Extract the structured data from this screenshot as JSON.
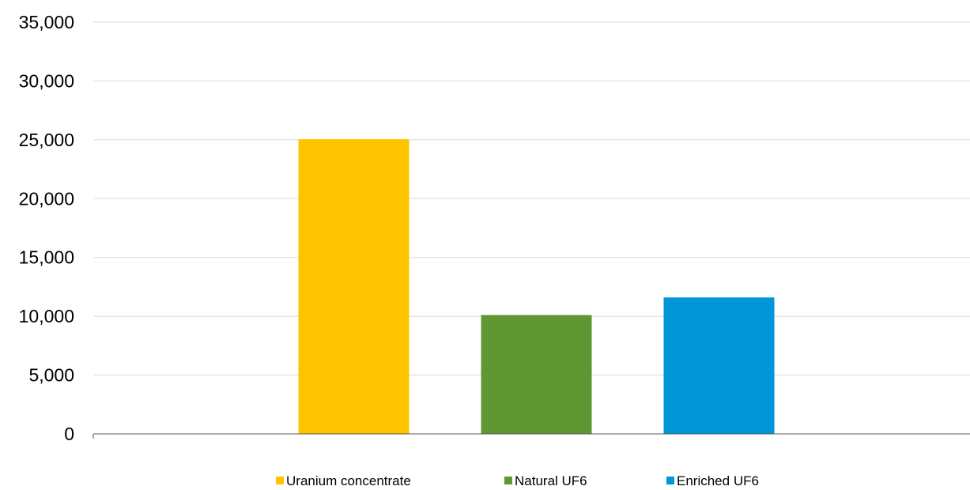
{
  "chart_data": {
    "type": "bar",
    "title": "",
    "xlabel": "",
    "ylabel": "",
    "ylim": [
      0,
      35000
    ],
    "yticks": [
      "0",
      "5,000",
      "10,000",
      "15,000",
      "20,000",
      "25,000",
      "30,000",
      "35,000"
    ],
    "grid": true,
    "legend_position": "bottom",
    "series": [
      {
        "name": "Uranium concentrate",
        "value": 25050,
        "color": "#FFC400"
      },
      {
        "name": "Natural UF6",
        "value": 10100,
        "color": "#5F9733"
      },
      {
        "name": "Enriched UF6",
        "value": 11600,
        "color": "#0096D8"
      }
    ]
  }
}
